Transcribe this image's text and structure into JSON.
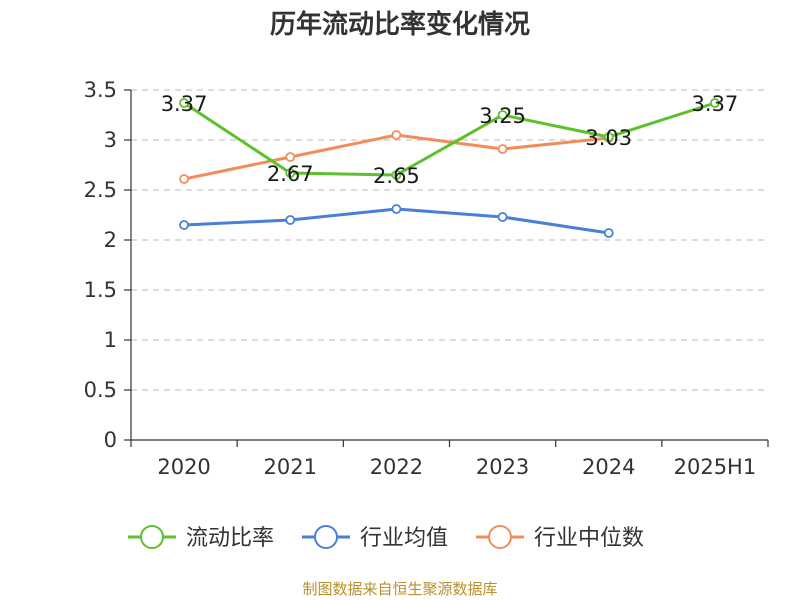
{
  "chart_data": {
    "type": "line",
    "title": "历年流动比率变化情况",
    "categories": [
      "2020",
      "2021",
      "2022",
      "2023",
      "2024",
      "2025H1"
    ],
    "ylim": [
      0,
      3.5
    ],
    "yticks": [
      0,
      0.5,
      1,
      1.5,
      2,
      2.5,
      3,
      3.5
    ],
    "ytick_labels": [
      "0",
      "0.5",
      "1",
      "1.5",
      "2",
      "2.5",
      "3",
      "3.5"
    ],
    "grid": true,
    "legend_position": "bottom",
    "series": [
      {
        "name": "流动比率",
        "color": "#5cc12b",
        "values": [
          3.37,
          2.67,
          2.65,
          3.25,
          3.03,
          3.37
        ],
        "labels": [
          "3.37",
          "2.67",
          "2.65",
          "3.25",
          "3.03",
          "3.37"
        ]
      },
      {
        "name": "行业均值",
        "color": "#4a7fd8",
        "values": [
          2.15,
          2.2,
          2.31,
          2.23,
          2.07,
          null
        ]
      },
      {
        "name": "行业中位数",
        "color": "#f28d5a",
        "values": [
          2.61,
          2.83,
          3.05,
          2.91,
          3.02,
          null
        ]
      }
    ]
  },
  "source_text": "制图数据来自恒生聚源数据库"
}
